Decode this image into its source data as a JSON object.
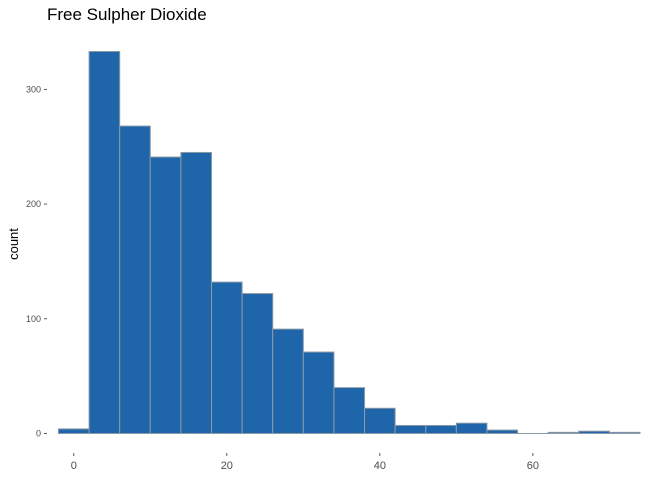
{
  "chart_data": {
    "type": "bar",
    "title": "Free Sulpher Dioxide",
    "xlabel": "",
    "ylabel": "count",
    "bin_width": 4,
    "bins": [
      {
        "x0": -2,
        "x1": 2,
        "count": 4
      },
      {
        "x0": 2,
        "x1": 6,
        "count": 333
      },
      {
        "x0": 6,
        "x1": 10,
        "count": 268
      },
      {
        "x0": 10,
        "x1": 14,
        "count": 241
      },
      {
        "x0": 14,
        "x1": 18,
        "count": 245
      },
      {
        "x0": 18,
        "x1": 22,
        "count": 132
      },
      {
        "x0": 22,
        "x1": 26,
        "count": 122
      },
      {
        "x0": 26,
        "x1": 30,
        "count": 91
      },
      {
        "x0": 30,
        "x1": 34,
        "count": 71
      },
      {
        "x0": 34,
        "x1": 38,
        "count": 40
      },
      {
        "x0": 38,
        "x1": 42,
        "count": 22
      },
      {
        "x0": 42,
        "x1": 46,
        "count": 7
      },
      {
        "x0": 46,
        "x1": 50,
        "count": 7
      },
      {
        "x0": 50,
        "x1": 54,
        "count": 9
      },
      {
        "x0": 54,
        "x1": 58,
        "count": 3
      },
      {
        "x0": 58,
        "x1": 62,
        "count": 0
      },
      {
        "x0": 62,
        "x1": 66,
        "count": 1
      },
      {
        "x0": 66,
        "x1": 70,
        "count": 2
      },
      {
        "x0": 70,
        "x1": 74,
        "count": 1
      }
    ],
    "xlim": [
      -3.5,
      74
    ],
    "ylim": [
      -17,
      350
    ],
    "xticks": [
      0,
      20,
      40,
      60
    ],
    "yticks": [
      0,
      100,
      200,
      300
    ],
    "grid": false,
    "legend": "none",
    "colors": {
      "bar_fill": "#1f65aa",
      "bar_stroke": "#8c9aa8",
      "tick_text": "#4d4d4d",
      "tick_mark": "#333333"
    }
  }
}
